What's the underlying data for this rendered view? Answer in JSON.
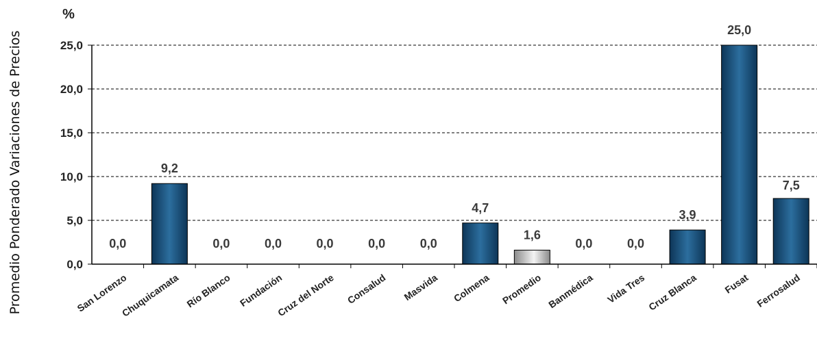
{
  "chart_data": {
    "type": "bar",
    "ylabel": "Promedio Ponderado Variaciones de Precios",
    "unit_label": "%",
    "ylim": [
      0,
      25
    ],
    "yticks": [
      "0,0",
      "5,0",
      "10,0",
      "15,0",
      "20,0",
      "25,0"
    ],
    "grid": true,
    "categories": [
      "San Lorenzo",
      "Chuquicamata",
      "Río Blanco",
      "Fundación",
      "Cruz del Norte",
      "Consalud",
      "Masvida",
      "Colmena",
      "Promedio",
      "Banmédica",
      "Vida Tres",
      "Cruz Blanca",
      "Fusat",
      "Ferrosalud"
    ],
    "values": [
      0.0,
      9.2,
      0.0,
      0.0,
      0.0,
      0.0,
      0.0,
      4.7,
      1.6,
      0.0,
      0.0,
      3.9,
      25.0,
      7.5
    ],
    "value_labels": [
      "0,0",
      "9,2",
      "0,0",
      "0,0",
      "0,0",
      "0,0",
      "0,0",
      "4,7",
      "1,6",
      "0,0",
      "0,0",
      "3,9",
      "25,0",
      "7,5"
    ],
    "highlight_index": 8,
    "colors": {
      "bar_dark": "#0d3557",
      "bar_light": "#2c6e9e",
      "highlight_dark": "#8a8a8a",
      "highlight_light": "#f4f4f4",
      "highlight_label": "#e8141a",
      "label": "#3a3a3a",
      "grid": "#000000"
    }
  }
}
